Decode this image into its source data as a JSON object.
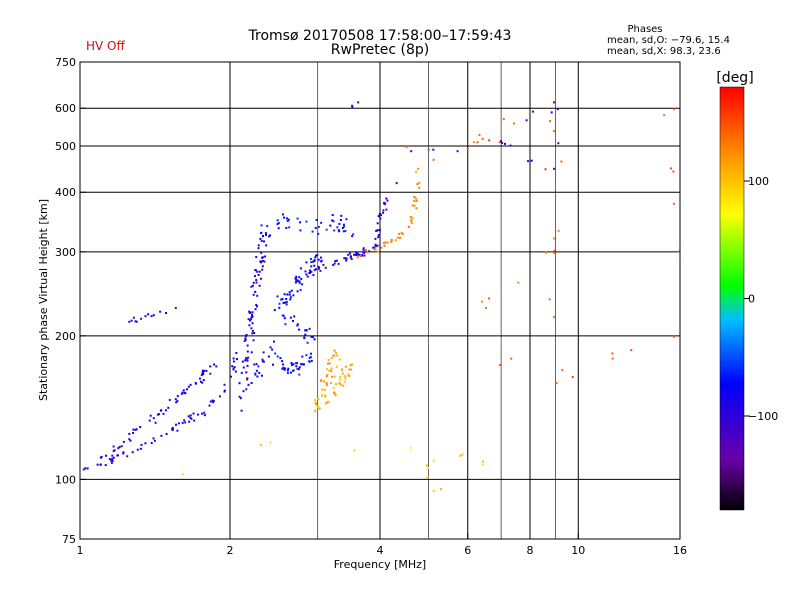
{
  "header": {
    "status": "HV Off",
    "status_color": "#d01010",
    "title_line1": "Tromsø 20170508 17:58:00–17:59:43",
    "title_line2": "RwPretec (8p)"
  },
  "stats": {
    "heading": "Phases",
    "line1": "mean, sd,O: −79.6, 15.4",
    "line2": "mean, sd,X:  98.3, 23.6"
  },
  "colorbar": {
    "label": "[deg]",
    "ticks": [
      {
        "value": 100,
        "label": "100"
      },
      {
        "value": 0,
        "label": "0"
      },
      {
        "value": -100,
        "label": "−100"
      }
    ],
    "range": [
      -180,
      180
    ]
  },
  "chart_data": {
    "type": "scatter",
    "xlabel": "Frequency [MHz]",
    "ylabel": "Stationary phase Virtual Height [km]",
    "x_scale": "log",
    "y_scale": "log",
    "xlim": [
      1,
      16
    ],
    "ylim": [
      75,
      750
    ],
    "x_ticks": [
      {
        "value": 1,
        "label": "1"
      },
      {
        "value": 2,
        "label": "2"
      },
      {
        "value": 4,
        "label": "4"
      },
      {
        "value": 6,
        "label": "6"
      },
      {
        "value": 8,
        "label": "8"
      },
      {
        "value": 10,
        "label": "10"
      },
      {
        "value": 16,
        "label": "16"
      }
    ],
    "x_gridlines": [
      2,
      4,
      6,
      8,
      10
    ],
    "x_minor_gridlines": [
      3,
      5,
      7,
      9
    ],
    "y_ticks": [
      {
        "value": 75,
        "label": "75"
      },
      {
        "value": 100,
        "label": "100"
      },
      {
        "value": 200,
        "label": "200"
      },
      {
        "value": 300,
        "label": "300"
      },
      {
        "value": 400,
        "label": "400"
      },
      {
        "value": 500,
        "label": "500"
      },
      {
        "value": 600,
        "label": "600"
      },
      {
        "value": 750,
        "label": "750"
      }
    ],
    "y_gridlines": [
      100,
      200,
      300,
      400,
      500,
      600
    ],
    "traces": [
      {
        "name": "O-mode low trace",
        "phase": -95,
        "spread": 4,
        "density": 60,
        "points": [
          [
            1.02,
            106
          ],
          [
            1.15,
            110
          ],
          [
            1.3,
            116
          ],
          [
            1.45,
            124
          ],
          [
            1.6,
            132
          ],
          [
            1.75,
            138
          ],
          [
            1.9,
            150
          ],
          [
            2.0,
            165
          ],
          [
            2.05,
            185
          ]
        ]
      },
      {
        "name": "O-mode upper trace",
        "phase": -85,
        "spread": 5,
        "density": 55,
        "points": [
          [
            1.1,
            112
          ],
          [
            1.25,
            122
          ],
          [
            1.4,
            135
          ],
          [
            1.55,
            148
          ],
          [
            1.7,
            160
          ],
          [
            1.85,
            175
          ]
        ]
      },
      {
        "name": "O-mode vertical band",
        "phase": -90,
        "spread": 6,
        "density": 80,
        "points": [
          [
            2.1,
            140
          ],
          [
            2.15,
            180
          ],
          [
            2.2,
            220
          ],
          [
            2.25,
            260
          ],
          [
            2.3,
            300
          ],
          [
            2.35,
            330
          ]
        ]
      },
      {
        "name": "O-mode F region",
        "phase": -75,
        "spread": 8,
        "density": 120,
        "points": [
          [
            2.2,
            160
          ],
          [
            2.4,
            190
          ],
          [
            2.6,
            170
          ],
          [
            2.8,
            175
          ],
          [
            2.9,
            200
          ],
          [
            2.5,
            230
          ],
          [
            2.7,
            260
          ],
          [
            3.0,
            290
          ]
        ]
      },
      {
        "name": "O-mode F trace to cusp",
        "phase": -100,
        "spread": 4,
        "density": 70,
        "points": [
          [
            2.7,
            265
          ],
          [
            3.0,
            280
          ],
          [
            3.4,
            292
          ],
          [
            3.7,
            300
          ],
          [
            3.9,
            312
          ],
          [
            4.0,
            360
          ],
          [
            4.1,
            390
          ]
        ]
      },
      {
        "name": "O-mode scattered",
        "phase": -70,
        "spread": 10,
        "density": 40,
        "points": [
          [
            2.3,
            330
          ],
          [
            2.6,
            350
          ],
          [
            3.0,
            340
          ],
          [
            3.3,
            345
          ],
          [
            3.5,
            325
          ],
          [
            3.2,
            360
          ]
        ]
      },
      {
        "name": "X-mode E region",
        "phase": 110,
        "spread": 6,
        "density": 60,
        "points": [
          [
            2.95,
            140
          ],
          [
            3.05,
            155
          ],
          [
            3.15,
            170
          ],
          [
            3.25,
            185
          ],
          [
            3.1,
            145
          ],
          [
            3.3,
            160
          ],
          [
            3.5,
            175
          ]
        ]
      },
      {
        "name": "X-mode F trace",
        "phase": 125,
        "spread": 4,
        "density": 35,
        "points": [
          [
            3.6,
            295
          ],
          [
            3.9,
            305
          ],
          [
            4.2,
            318
          ],
          [
            4.4,
            330
          ],
          [
            4.6,
            350
          ],
          [
            4.7,
            390
          ],
          [
            4.75,
            450
          ]
        ]
      },
      {
        "name": "Isolated echoes",
        "phase": 140,
        "spread": 12,
        "density": 30,
        "points": [
          [
            4.5,
            500
          ],
          [
            5.1,
            470
          ],
          [
            6.4,
            520
          ],
          [
            7.4,
            560
          ],
          [
            8.9,
            540
          ],
          [
            8.9,
            300
          ],
          [
            8.9,
            220
          ],
          [
            9.0,
            160
          ],
          [
            15.5,
            200
          ],
          [
            15.5,
            380
          ],
          [
            15.5,
            600
          ],
          [
            6.5,
            230
          ],
          [
            7.3,
            180
          ]
        ]
      },
      {
        "name": "Low isolated echoes",
        "phase": 90,
        "spread": 12,
        "density": 10,
        "points": [
          [
            5.1,
            95
          ],
          [
            5.1,
            110
          ],
          [
            6.4,
            108
          ],
          [
            2.4,
            120
          ],
          [
            1.6,
            103
          ]
        ]
      },
      {
        "name": "Blue high echoes",
        "phase": -105,
        "spread": 6,
        "density": 12,
        "points": [
          [
            3.5,
            610
          ],
          [
            3.6,
            620
          ],
          [
            4.3,
            420
          ],
          [
            4.6,
            490
          ],
          [
            5.7,
            490
          ],
          [
            8.9,
            620
          ],
          [
            8.9,
            450
          ],
          [
            7.0,
            510
          ]
        ]
      },
      {
        "name": "Short low trace",
        "phase": -95,
        "spread": 3,
        "density": 10,
        "points": [
          [
            1.25,
            215
          ],
          [
            1.4,
            222
          ],
          [
            1.55,
            230
          ]
        ]
      }
    ]
  }
}
